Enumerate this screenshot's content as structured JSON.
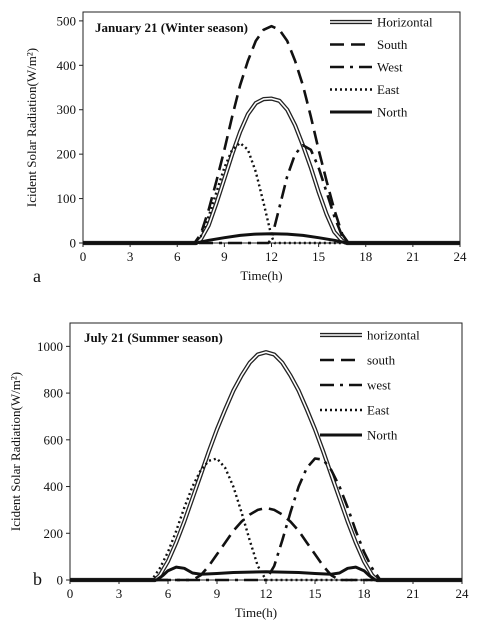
{
  "chart_data": [
    {
      "type": "line",
      "panel_label": "a",
      "title": "January 21 (Winter  season)",
      "xlabel": "Time(h)",
      "ylabel": "Icident Solar Radiation(W/m²)",
      "xlim": [
        0,
        24
      ],
      "ylim": [
        0,
        520
      ],
      "xticks": [
        "0",
        "3",
        "6",
        "9",
        "12",
        "15",
        "18",
        "21",
        "24"
      ],
      "yticks": [
        "0",
        "100",
        "200",
        "300",
        "400",
        "500"
      ],
      "legend_position": "top-right",
      "series": [
        {
          "name": "Horizontal",
          "style": "double",
          "x": [
            0,
            7.2,
            7.5,
            8,
            8.5,
            9,
            9.5,
            10,
            10.5,
            11,
            11.5,
            12,
            12.5,
            13,
            13.5,
            14,
            14.5,
            15,
            15.5,
            16,
            16.5,
            16.8,
            24
          ],
          "y": [
            0,
            0,
            8,
            40,
            90,
            145,
            200,
            250,
            290,
            315,
            324,
            325,
            320,
            300,
            265,
            220,
            170,
            115,
            65,
            25,
            5,
            0,
            0
          ]
        },
        {
          "name": "South",
          "style": "dashed",
          "x": [
            0,
            7.1,
            7.5,
            8,
            8.5,
            9,
            9.5,
            10,
            10.5,
            11,
            11.5,
            12,
            12.5,
            13,
            13.5,
            14,
            14.5,
            15,
            15.5,
            16,
            16.5,
            16.9,
            24
          ],
          "y": [
            0,
            0,
            20,
            75,
            140,
            210,
            285,
            355,
            410,
            455,
            480,
            488,
            480,
            455,
            410,
            355,
            285,
            210,
            140,
            75,
            20,
            0,
            0
          ]
        },
        {
          "name": "West",
          "style": "dashdot",
          "x": [
            0,
            11.8,
            12,
            12.5,
            13,
            13.5,
            14,
            14.5,
            15,
            15.5,
            16,
            16.5,
            16.9,
            24
          ],
          "y": [
            0,
            0,
            10,
            80,
            150,
            200,
            220,
            210,
            170,
            115,
            60,
            15,
            0,
            0
          ]
        },
        {
          "name": "East",
          "style": "dotted",
          "x": [
            0,
            7.1,
            7.5,
            8,
            8.5,
            9,
            9.5,
            10,
            10.5,
            11,
            11.5,
            12,
            12.2,
            24
          ],
          "y": [
            0,
            0,
            15,
            60,
            115,
            170,
            210,
            225,
            210,
            160,
            90,
            15,
            0,
            0
          ]
        },
        {
          "name": "North",
          "style": "solid",
          "x": [
            0,
            7.2,
            8,
            9,
            10,
            11,
            12,
            13,
            14,
            15,
            16,
            16.8,
            24
          ],
          "y": [
            0,
            0,
            6,
            12,
            17,
            20,
            21,
            20,
            17,
            12,
            6,
            0,
            0
          ]
        }
      ]
    },
    {
      "type": "line",
      "panel_label": "b",
      "title": "July 21 (Summer  season)",
      "xlabel": "Time(h)",
      "ylabel": "Icident Solar Radiation(W/m²)",
      "xlim": [
        0,
        24
      ],
      "ylim": [
        0,
        1100
      ],
      "xticks": [
        "0",
        "3",
        "6",
        "9",
        "12",
        "15",
        "18",
        "21",
        "24"
      ],
      "yticks": [
        "0",
        "200",
        "400",
        "600",
        "800",
        "1000"
      ],
      "legend_position": "top-right",
      "series": [
        {
          "name": "horizontal",
          "style": "double",
          "x": [
            0,
            5.2,
            5.5,
            6,
            6.5,
            7,
            7.5,
            8,
            8.5,
            9,
            9.5,
            10,
            10.5,
            11,
            11.5,
            12,
            12.5,
            13,
            13.5,
            14,
            14.5,
            15,
            15.5,
            16,
            16.5,
            17,
            17.5,
            18,
            18.5,
            18.8,
            24
          ],
          "y": [
            0,
            0,
            20,
            80,
            160,
            250,
            350,
            450,
            550,
            645,
            730,
            810,
            875,
            930,
            965,
            975,
            965,
            930,
            875,
            810,
            730,
            645,
            550,
            450,
            350,
            250,
            160,
            80,
            20,
            0,
            0
          ]
        },
        {
          "name": "south",
          "style": "dashed",
          "x": [
            0,
            7.5,
            8,
            8.5,
            9,
            9.5,
            10,
            10.5,
            11,
            11.5,
            12,
            12.5,
            13,
            13.5,
            14,
            14.5,
            15,
            15.5,
            16,
            16.5,
            24
          ],
          "y": [
            0,
            0,
            20,
            60,
            110,
            160,
            210,
            250,
            280,
            300,
            308,
            300,
            280,
            250,
            210,
            160,
            110,
            60,
            20,
            0,
            0
          ]
        },
        {
          "name": "west",
          "style": "dashdot",
          "x": [
            0,
            12,
            12.5,
            13,
            13.5,
            14,
            14.5,
            15,
            15.5,
            16,
            16.5,
            17,
            17.5,
            18,
            18.5,
            19,
            24
          ],
          "y": [
            0,
            0,
            60,
            170,
            290,
            400,
            480,
            520,
            515,
            470,
            400,
            310,
            210,
            120,
            50,
            0,
            0
          ]
        },
        {
          "name": "East",
          "style": "dotted",
          "x": [
            0,
            5,
            5.5,
            6,
            6.5,
            7,
            7.5,
            8,
            8.5,
            9,
            9.5,
            10,
            10.5,
            11,
            11.5,
            12,
            24
          ],
          "y": [
            0,
            0,
            50,
            120,
            210,
            310,
            400,
            470,
            510,
            520,
            480,
            400,
            290,
            170,
            60,
            0,
            0
          ]
        },
        {
          "name": "North",
          "style": "solid",
          "x": [
            0,
            5.3,
            5.7,
            6,
            6.5,
            7,
            7.5,
            8,
            9,
            10,
            11,
            12,
            13,
            14,
            15,
            16,
            16.5,
            17,
            17.5,
            18,
            18.3,
            18.7,
            24
          ],
          "y": [
            0,
            0,
            20,
            40,
            55,
            50,
            30,
            25,
            28,
            32,
            34,
            35,
            34,
            32,
            28,
            25,
            30,
            50,
            55,
            40,
            20,
            0,
            0
          ]
        }
      ]
    }
  ]
}
